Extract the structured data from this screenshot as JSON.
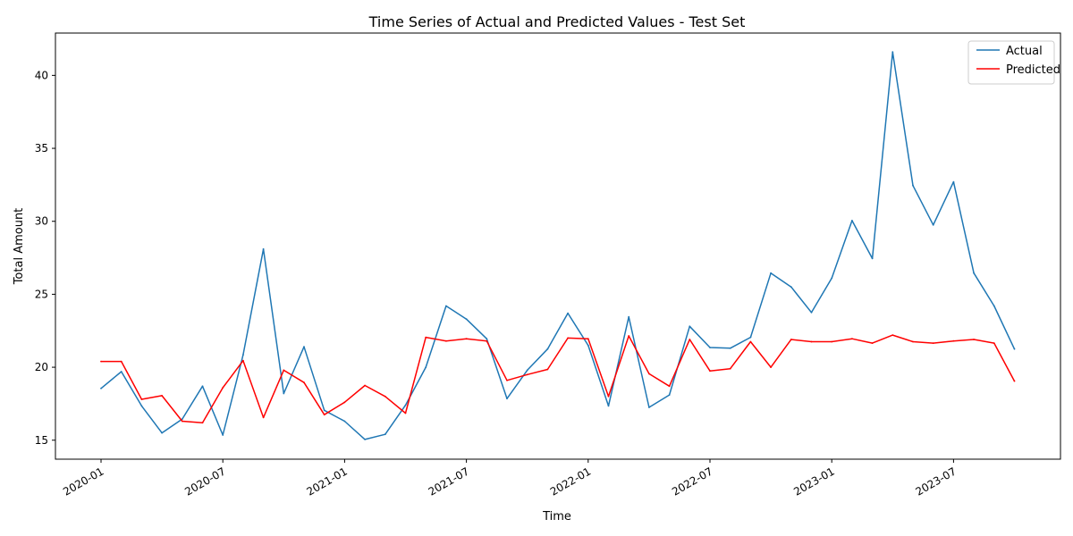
{
  "chart_data": {
    "type": "line",
    "title": "Time Series of Actual and Predicted Values - Test Set",
    "xlabel": "Time",
    "ylabel": "Total Amount",
    "ylim": [
      13.7,
      42.9
    ],
    "yticks": [
      15,
      20,
      25,
      30,
      35,
      40
    ],
    "xticks": [
      "2020-01",
      "2020-07",
      "2021-01",
      "2021-07",
      "2022-01",
      "2022-07",
      "2023-01",
      "2023-07"
    ],
    "grid": false,
    "legend_position": "top-right",
    "x": [
      "2020-01",
      "2020-02",
      "2020-03",
      "2020-04",
      "2020-05",
      "2020-06",
      "2020-07",
      "2020-08",
      "2020-09",
      "2020-10",
      "2020-11",
      "2020-12",
      "2021-01",
      "2021-02",
      "2021-03",
      "2021-04",
      "2021-05",
      "2021-06",
      "2021-07",
      "2021-08",
      "2021-09",
      "2021-10",
      "2021-11",
      "2021-12",
      "2022-01",
      "2022-02",
      "2022-03",
      "2022-04",
      "2022-05",
      "2022-06",
      "2022-07",
      "2022-08",
      "2022-09",
      "2022-10",
      "2022-11",
      "2022-12",
      "2023-01",
      "2023-02",
      "2023-03",
      "2023-04",
      "2023-05",
      "2023-06",
      "2023-07",
      "2023-08",
      "2023-09",
      "2023-10"
    ],
    "series": [
      {
        "name": "Actual",
        "color": "#1f77b4",
        "values": [
          18.55,
          19.7,
          17.35,
          15.5,
          16.45,
          18.7,
          15.35,
          20.85,
          28.1,
          18.2,
          21.4,
          17.05,
          16.3,
          15.05,
          15.4,
          17.4,
          20.0,
          24.2,
          23.3,
          21.95,
          17.85,
          19.8,
          21.25,
          23.7,
          21.5,
          17.35,
          23.45,
          17.25,
          18.1,
          22.8,
          21.35,
          21.3,
          22.05,
          26.45,
          25.5,
          23.75,
          26.1,
          30.05,
          27.45,
          41.6,
          32.45,
          29.75,
          32.7,
          26.45,
          24.2,
          21.25
        ]
      },
      {
        "name": "Predicted",
        "color": "#ff0000",
        "values": [
          20.4,
          20.4,
          17.8,
          18.05,
          16.3,
          16.2,
          18.6,
          20.45,
          16.55,
          19.8,
          18.95,
          16.75,
          17.6,
          18.75,
          18.0,
          16.85,
          22.05,
          21.8,
          21.95,
          21.8,
          19.1,
          19.5,
          19.85,
          22.0,
          21.95,
          18.0,
          22.15,
          19.55,
          18.7,
          21.9,
          19.75,
          19.9,
          21.75,
          20.0,
          21.9,
          21.75,
          21.75,
          21.95,
          21.65,
          22.2,
          21.75,
          21.65,
          21.8,
          21.9,
          21.65,
          19.05
        ]
      }
    ]
  }
}
